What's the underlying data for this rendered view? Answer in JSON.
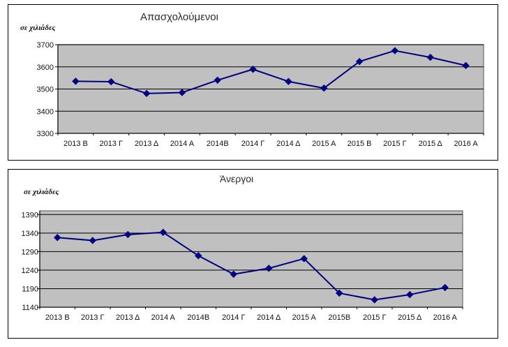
{
  "charts": [
    {
      "title": "Απασχολούμενοι",
      "unit_label": "σε χιλιάδες"
    },
    {
      "title": "Άνεργοι",
      "unit_label": "σε χιλιάδες"
    }
  ],
  "chart_data": [
    {
      "type": "line",
      "title": "Απασχολούμενοι",
      "subtitle": "σε χιλιάδες",
      "xlabel": "",
      "ylabel": "σε χιλιάδες",
      "categories": [
        "2013 B",
        "2013 Γ",
        "2013 Δ",
        "2014 A",
        "2014B",
        "2014 Γ",
        "2014 Δ",
        "2015 A",
        "2015 B",
        "2015 Γ",
        "2015 Δ",
        "2016 A"
      ],
      "values": [
        3535,
        3533,
        3480,
        3484,
        3540,
        3589,
        3534,
        3504,
        3624,
        3673,
        3643,
        3606
      ],
      "ylim": [
        3300,
        3700
      ],
      "yticks": [
        3300,
        3400,
        3500,
        3600,
        3700
      ],
      "grid": true,
      "legend": "none",
      "marker": "diamond",
      "line_color": "#000080",
      "plot_bg": "#C0C0C0",
      "grid_color": "#000000"
    },
    {
      "type": "line",
      "title": "Άνεργοι",
      "subtitle": "σε χιλιάδες",
      "xlabel": "",
      "ylabel": "σε χιλιάδες",
      "categories": [
        "2013 B",
        "2013 Γ",
        "2013 Δ",
        "2014 A",
        "2014B",
        "2014 Γ",
        "2014 Δ",
        "2015 A",
        "2015B",
        "2015 Γ",
        "2015 Δ",
        "2016 A"
      ],
      "values": [
        1328,
        1320,
        1336,
        1342,
        1279,
        1229,
        1245,
        1271,
        1178,
        1160,
        1174,
        1193
      ],
      "ylim": [
        1140,
        1400
      ],
      "yticks": [
        1140,
        1190,
        1240,
        1290,
        1340,
        1390
      ],
      "grid": true,
      "legend": "none",
      "marker": "diamond",
      "line_color": "#000080",
      "plot_bg": "#C0C0C0",
      "grid_color": "#000000"
    }
  ]
}
